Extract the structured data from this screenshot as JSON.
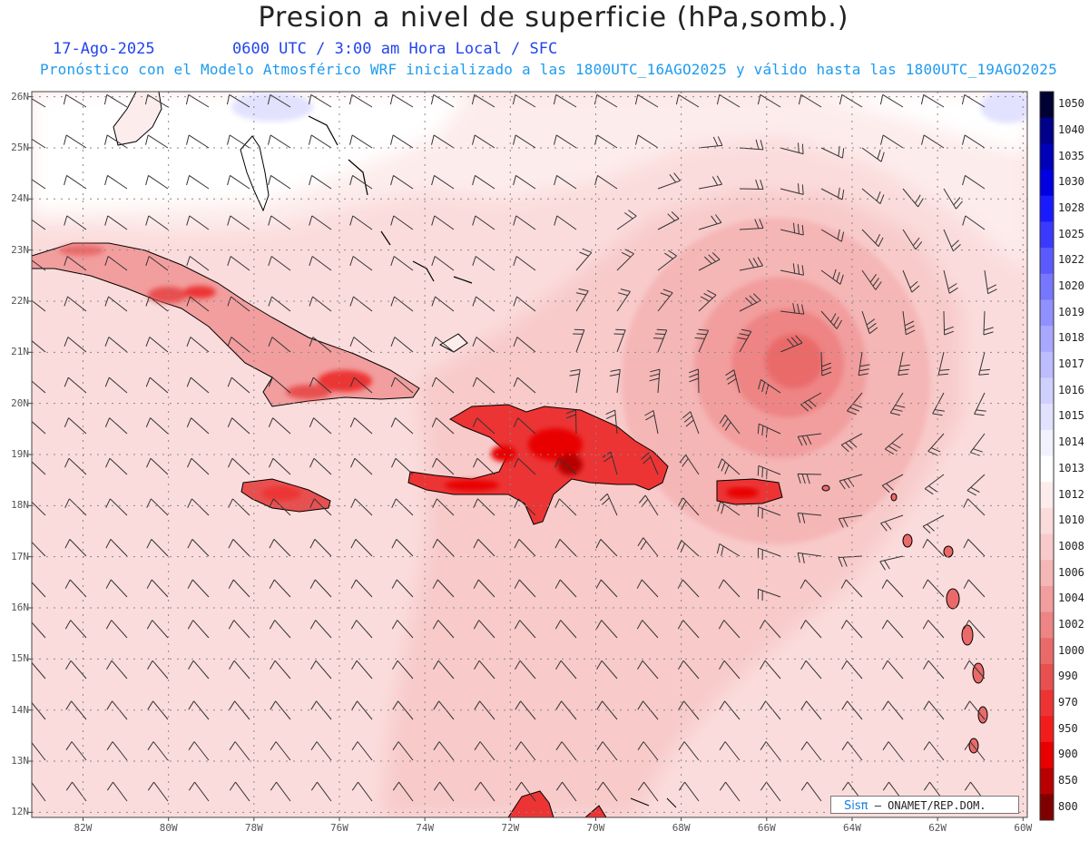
{
  "header": {
    "title": "Presion a nivel de superficie (hPa,somb.)",
    "date": "17-Ago-2025",
    "time_info": "0600 UTC / 3:00 am Hora Local / SFC",
    "model_info": "Pronóstico con el Modelo Atmosférico WRF inicializado a las 1800UTC_16AGO2025 y válido hasta las  1800UTC_19AGO2025"
  },
  "credit": {
    "brand": "Sisπ",
    "text": "– ONAMET/REP.DOM."
  },
  "map": {
    "lat_labels": [
      "26N",
      "25N",
      "24N",
      "23N",
      "22N",
      "21N",
      "20N",
      "19N",
      "18N",
      "17N",
      "16N",
      "15N",
      "14N",
      "13N",
      "12N"
    ],
    "lon_labels": [
      "82W",
      "80W",
      "78W",
      "76W",
      "74W",
      "72W",
      "70W",
      "68W",
      "66W",
      "64W",
      "62W",
      "60W"
    ]
  },
  "colorbar": {
    "levels": [
      "1050",
      "1040",
      "1035",
      "1030",
      "1028",
      "1025",
      "1022",
      "1020",
      "1019",
      "1018",
      "1017",
      "1016",
      "1015",
      "1014",
      "1013",
      "1012",
      "1010",
      "1008",
      "1006",
      "1004",
      "1002",
      "1000",
      "990",
      "970",
      "950",
      "900",
      "850",
      "800"
    ],
    "colors": [
      "#000033",
      "#00008b",
      "#0000b8",
      "#0000e0",
      "#1a1aff",
      "#3a3aff",
      "#5a5aff",
      "#7676ff",
      "#9090ff",
      "#a8a8ff",
      "#bcbcff",
      "#d0d0ff",
      "#e2e2ff",
      "#f2f2ff",
      "#ffffff",
      "#fdecec",
      "#fbdcdc",
      "#f8caca",
      "#f5b6b6",
      "#f29e9e",
      "#ee8484",
      "#ea6a6a",
      "#e85050",
      "#ec3434",
      "#f21c1c",
      "#e80000",
      "#b80000",
      "#800000"
    ]
  },
  "chart_data": {
    "type": "heatmap",
    "title": "Presion a nivel de superficie (hPa,somb.)",
    "variable": "surface pressure shading with wind barbs",
    "units": "hPa",
    "x_range_lon_deg": [
      -83.2,
      -59.9
    ],
    "y_range_lat_deg": [
      11.9,
      26.1
    ],
    "features": [
      {
        "name": "low-pressure-center",
        "lon": -65.3,
        "lat": 20.8,
        "pressure_hpa_approx": 1004
      },
      {
        "name": "cuba-terrain",
        "pressure_hpa_approx": 1004
      },
      {
        "name": "hispaniola-terrain",
        "pressure_hpa_approx": 1000
      },
      {
        "name": "jamaica-terrain",
        "pressure_hpa_approx": 1004
      },
      {
        "name": "puerto-rico-terrain",
        "pressure_hpa_approx": 1004
      },
      {
        "name": "northern-background",
        "pressure_hpa_approx": 1012
      },
      {
        "name": "southern-background",
        "pressure_hpa_approx": 1010
      }
    ],
    "grid": true
  }
}
